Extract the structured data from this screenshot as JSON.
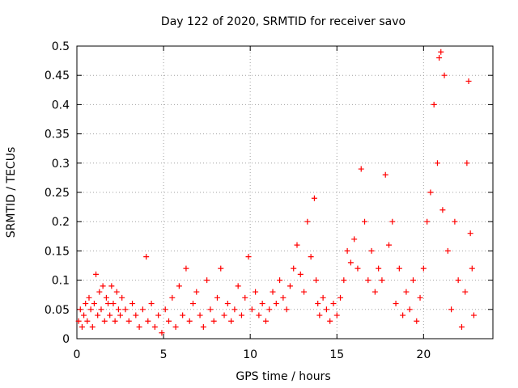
{
  "chart_data": {
    "type": "scatter",
    "title": "Day 122 of 2020, SRMTID for receiver savo",
    "xlabel": "GPS time / hours",
    "ylabel": "SRMTID / TECUs",
    "xlim": [
      0,
      24
    ],
    "ylim": [
      0,
      0.5
    ],
    "xticks": [
      0,
      5,
      10,
      15,
      20
    ],
    "xtick_labels": [
      "0",
      "5",
      "10",
      "15",
      "20"
    ],
    "yticks": [
      0,
      0.05,
      0.1,
      0.15,
      0.2,
      0.25,
      0.3,
      0.35,
      0.4,
      0.45,
      0.5
    ],
    "ytick_labels": [
      "0",
      "0.05",
      "0.1",
      "0.15",
      "0.2",
      "0.25",
      "0.3",
      "0.35",
      "0.4",
      "0.45",
      "0.5"
    ],
    "grid": true,
    "marker": "+",
    "color": "#ff0000",
    "series": [
      {
        "name": "SRMTID",
        "points": [
          [
            0.1,
            0.03
          ],
          [
            0.2,
            0.05
          ],
          [
            0.3,
            0.02
          ],
          [
            0.4,
            0.04
          ],
          [
            0.5,
            0.06
          ],
          [
            0.6,
            0.03
          ],
          [
            0.7,
            0.07
          ],
          [
            0.8,
            0.05
          ],
          [
            0.9,
            0.02
          ],
          [
            1.0,
            0.06
          ],
          [
            1.1,
            0.11
          ],
          [
            1.2,
            0.04
          ],
          [
            1.3,
            0.08
          ],
          [
            1.4,
            0.05
          ],
          [
            1.5,
            0.09
          ],
          [
            1.6,
            0.03
          ],
          [
            1.7,
            0.07
          ],
          [
            1.8,
            0.06
          ],
          [
            1.9,
            0.04
          ],
          [
            2.0,
            0.09
          ],
          [
            2.1,
            0.06
          ],
          [
            2.2,
            0.03
          ],
          [
            2.3,
            0.08
          ],
          [
            2.4,
            0.05
          ],
          [
            2.5,
            0.04
          ],
          [
            2.6,
            0.07
          ],
          [
            2.8,
            0.05
          ],
          [
            3.0,
            0.03
          ],
          [
            3.2,
            0.06
          ],
          [
            3.4,
            0.04
          ],
          [
            3.6,
            0.02
          ],
          [
            3.8,
            0.05
          ],
          [
            4.0,
            0.14
          ],
          [
            4.1,
            0.03
          ],
          [
            4.3,
            0.06
          ],
          [
            4.5,
            0.02
          ],
          [
            4.7,
            0.04
          ],
          [
            4.9,
            0.01
          ],
          [
            5.1,
            0.05
          ],
          [
            5.3,
            0.03
          ],
          [
            5.5,
            0.07
          ],
          [
            5.7,
            0.02
          ],
          [
            5.9,
            0.09
          ],
          [
            6.1,
            0.04
          ],
          [
            6.3,
            0.12
          ],
          [
            6.5,
            0.03
          ],
          [
            6.7,
            0.06
          ],
          [
            6.9,
            0.08
          ],
          [
            7.1,
            0.04
          ],
          [
            7.3,
            0.02
          ],
          [
            7.5,
            0.1
          ],
          [
            7.7,
            0.05
          ],
          [
            7.9,
            0.03
          ],
          [
            8.1,
            0.07
          ],
          [
            8.3,
            0.12
          ],
          [
            8.5,
            0.04
          ],
          [
            8.7,
            0.06
          ],
          [
            8.9,
            0.03
          ],
          [
            9.1,
            0.05
          ],
          [
            9.3,
            0.09
          ],
          [
            9.5,
            0.04
          ],
          [
            9.7,
            0.07
          ],
          [
            9.9,
            0.14
          ],
          [
            10.1,
            0.05
          ],
          [
            10.3,
            0.08
          ],
          [
            10.5,
            0.04
          ],
          [
            10.7,
            0.06
          ],
          [
            10.9,
            0.03
          ],
          [
            11.1,
            0.05
          ],
          [
            11.3,
            0.08
          ],
          [
            11.5,
            0.06
          ],
          [
            11.7,
            0.1
          ],
          [
            11.9,
            0.07
          ],
          [
            12.1,
            0.05
          ],
          [
            12.3,
            0.09
          ],
          [
            12.5,
            0.12
          ],
          [
            12.7,
            0.16
          ],
          [
            12.9,
            0.11
          ],
          [
            13.1,
            0.08
          ],
          [
            13.3,
            0.2
          ],
          [
            13.5,
            0.14
          ],
          [
            13.7,
            0.24
          ],
          [
            13.8,
            0.1
          ],
          [
            13.9,
            0.06
          ],
          [
            14.0,
            0.04
          ],
          [
            14.2,
            0.07
          ],
          [
            14.4,
            0.05
          ],
          [
            14.6,
            0.03
          ],
          [
            14.8,
            0.06
          ],
          [
            15.0,
            0.04
          ],
          [
            15.2,
            0.07
          ],
          [
            15.4,
            0.1
          ],
          [
            15.6,
            0.15
          ],
          [
            15.8,
            0.13
          ],
          [
            16.0,
            0.17
          ],
          [
            16.2,
            0.12
          ],
          [
            16.4,
            0.29
          ],
          [
            16.6,
            0.2
          ],
          [
            16.8,
            0.1
          ],
          [
            17.0,
            0.15
          ],
          [
            17.2,
            0.08
          ],
          [
            17.4,
            0.12
          ],
          [
            17.6,
            0.1
          ],
          [
            17.8,
            0.28
          ],
          [
            18.0,
            0.16
          ],
          [
            18.2,
            0.2
          ],
          [
            18.4,
            0.06
          ],
          [
            18.6,
            0.12
          ],
          [
            18.8,
            0.04
          ],
          [
            19.0,
            0.08
          ],
          [
            19.2,
            0.05
          ],
          [
            19.4,
            0.1
          ],
          [
            19.6,
            0.03
          ],
          [
            19.8,
            0.07
          ],
          [
            20.0,
            0.12
          ],
          [
            20.2,
            0.2
          ],
          [
            20.4,
            0.25
          ],
          [
            20.6,
            0.4
          ],
          [
            20.8,
            0.3
          ],
          [
            20.9,
            0.48
          ],
          [
            21.0,
            0.49
          ],
          [
            21.1,
            0.22
          ],
          [
            21.2,
            0.45
          ],
          [
            21.4,
            0.15
          ],
          [
            21.6,
            0.05
          ],
          [
            21.8,
            0.2
          ],
          [
            22.0,
            0.1
          ],
          [
            22.2,
            0.02
          ],
          [
            22.4,
            0.08
          ],
          [
            22.5,
            0.3
          ],
          [
            22.6,
            0.44
          ],
          [
            22.7,
            0.18
          ],
          [
            22.8,
            0.12
          ],
          [
            22.9,
            0.04
          ]
        ]
      }
    ]
  }
}
